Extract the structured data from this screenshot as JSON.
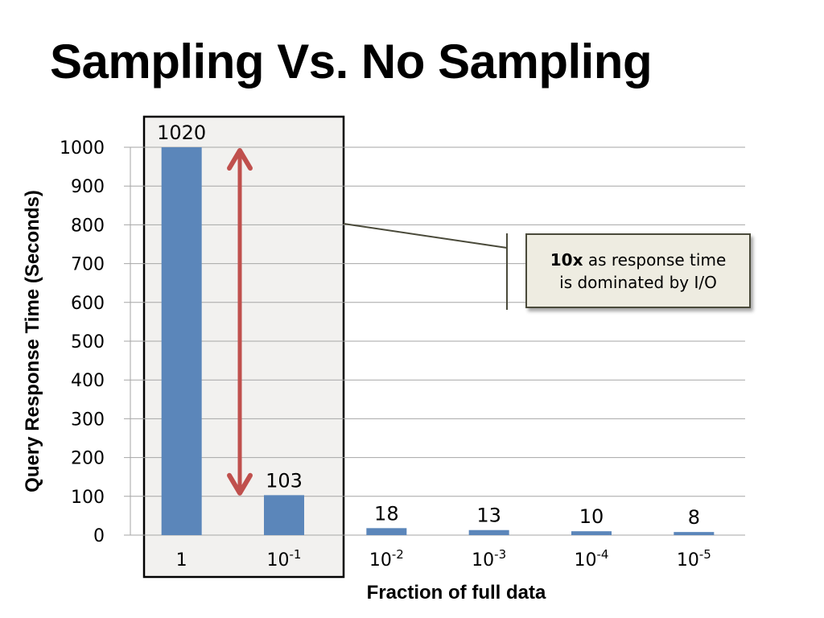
{
  "slide": {
    "title": "Sampling Vs. No Sampling"
  },
  "callout": {
    "bold": "10x",
    "line1_rest": " as response time",
    "line2": "is dominated by I/O"
  },
  "colors": {
    "bar": "#5b86ba",
    "arrow": "#c0504d",
    "highlight_fill": "#f2f1ef",
    "callout_fill": "#eeece1",
    "gridline": "#a6a6a6"
  },
  "chart_data": {
    "type": "bar",
    "categories": [
      {
        "base": "1",
        "exp": ""
      },
      {
        "base": "10",
        "exp": "-1"
      },
      {
        "base": "10",
        "exp": "-2"
      },
      {
        "base": "10",
        "exp": "-3"
      },
      {
        "base": "10",
        "exp": "-4"
      },
      {
        "base": "10",
        "exp": "-5"
      }
    ],
    "values": [
      1020,
      103,
      18,
      13,
      10,
      8
    ],
    "data_labels": [
      "1020",
      "103",
      "18",
      "13",
      "10",
      "8"
    ],
    "title": "Sampling Vs. No Sampling",
    "xlabel": "Fraction  of full data",
    "ylabel": "Query Response Time (Seconds)",
    "ylim": [
      0,
      1000
    ],
    "yticks": [
      0,
      100,
      200,
      300,
      400,
      500,
      600,
      700,
      800,
      900,
      1000
    ],
    "grid": true,
    "legend": "none",
    "highlight": "first two categories",
    "arrow": "double-headed, spanning 100 to 1000"
  }
}
